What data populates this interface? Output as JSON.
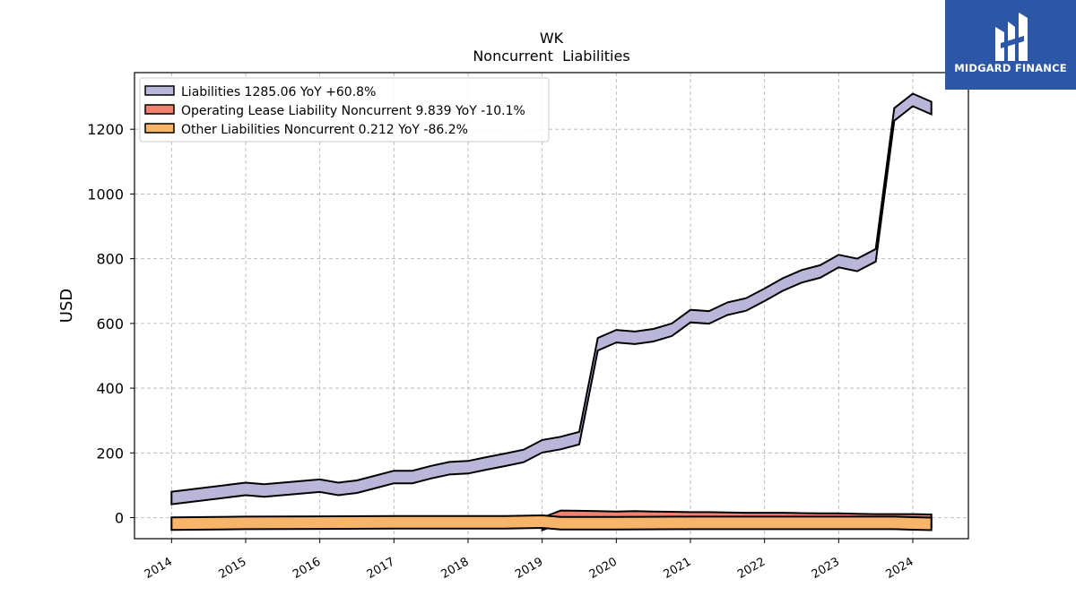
{
  "chart_data": {
    "type": "area",
    "title": "WK",
    "subtitle": "Noncurrent  Liabilities",
    "xlabel": "",
    "ylabel": "USD",
    "x_ticks": [
      "2014",
      "2015",
      "2016",
      "2017",
      "2018",
      "2019",
      "2020",
      "2021",
      "2022",
      "2023",
      "2024"
    ],
    "y_ticks": [
      "0",
      "200",
      "400",
      "600",
      "800",
      "1000",
      "1200"
    ],
    "xlim": [
      2013.5,
      2024.75
    ],
    "ylim": [
      -65,
      1375
    ],
    "grid": true,
    "legend_position": "top-left",
    "series": [
      {
        "name": "Liabilities",
        "legend_label": "Liabilities  1285.06 YoY +60.8%",
        "color": "#b9b6d9",
        "x": [
          2014.0,
          2015.0,
          2015.25,
          2016.0,
          2016.25,
          2016.5,
          2016.75,
          2017.0,
          2017.25,
          2017.5,
          2017.75,
          2018.0,
          2018.25,
          2018.5,
          2018.75,
          2019.0,
          2019.25,
          2019.5,
          2019.75,
          2020.0,
          2020.25,
          2020.5,
          2020.75,
          2021.0,
          2021.25,
          2021.5,
          2021.75,
          2022.0,
          2022.25,
          2022.5,
          2022.75,
          2023.0,
          2023.25,
          2023.5,
          2023.75,
          2024.0,
          2024.25
        ],
        "values": [
          80,
          108,
          103,
          118,
          108,
          115,
          130,
          145,
          145,
          160,
          172,
          175,
          187,
          198,
          210,
          240,
          250,
          265,
          555,
          580,
          575,
          583,
          600,
          642,
          638,
          665,
          678,
          708,
          740,
          765,
          780,
          812,
          800,
          830,
          1265,
          1310,
          1285
        ]
      },
      {
        "name": "Operating Lease Liability Noncurrent",
        "legend_label": "Operating Lease Liability Noncurrent  9.839 YoY -10.1%",
        "color": "#f08070",
        "x": [
          2019.0,
          2019.25,
          2019.5,
          2019.75,
          2020.0,
          2020.25,
          2020.5,
          2020.75,
          2021.0,
          2021.25,
          2021.5,
          2021.75,
          2022.0,
          2022.25,
          2022.5,
          2022.75,
          2023.0,
          2023.25,
          2023.5,
          2023.75,
          2024.0,
          2024.25
        ],
        "values": [
          0,
          22,
          21,
          20,
          19,
          20,
          19,
          18,
          17,
          17,
          16,
          15,
          15,
          15,
          14,
          13,
          13,
          12,
          11,
          11,
          11,
          9.839
        ]
      },
      {
        "name": "Other Liabilities Noncurrent",
        "legend_label": "Other Liabilities Noncurrent  0.212 YoY -86.2%",
        "color": "#f8b56a",
        "x": [
          2014.0,
          2015.0,
          2016.0,
          2017.0,
          2018.0,
          2018.5,
          2019.0,
          2019.25,
          2019.5,
          2020.0,
          2021.0,
          2022.0,
          2023.0,
          2023.75,
          2024.0,
          2024.25
        ],
        "values": [
          1,
          3,
          4,
          5,
          5,
          5,
          7,
          2,
          2,
          2,
          3,
          3,
          3,
          3,
          1.5,
          0.212
        ]
      }
    ]
  },
  "logo": {
    "text": "MIDGARD FINANCE",
    "background": "#2b57a6"
  }
}
